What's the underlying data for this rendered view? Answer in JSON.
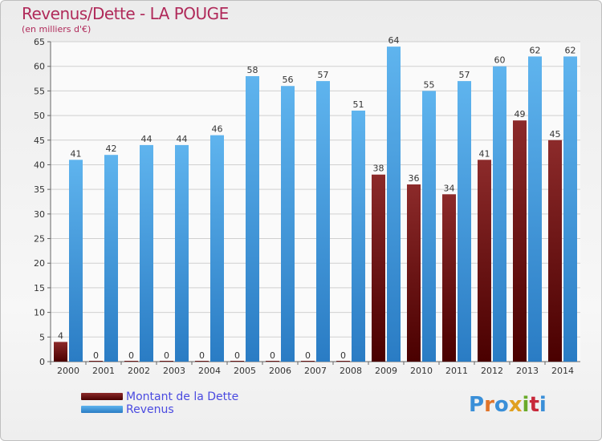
{
  "title": "Revenus/Dette - LA POUGE",
  "subtitle": "(en milliers d'€)",
  "brand": "Proxiti",
  "colors": {
    "debt": "#7a1212",
    "revenue": "#3a98e0",
    "grid": "#d0d0d0",
    "title": "#b02a5a",
    "legend_text": "#4a4ae0"
  },
  "chart_data": {
    "type": "bar",
    "title": "Revenus/Dette - LA POUGE",
    "subtitle": "(en milliers d'€)",
    "categories": [
      "2000",
      "2001",
      "2002",
      "2003",
      "2004",
      "2005",
      "2006",
      "2007",
      "2008",
      "2009",
      "2010",
      "2011",
      "2012",
      "2013",
      "2014"
    ],
    "series": [
      {
        "name": "Montant de la Dette",
        "values": [
          4,
          0,
          0,
          0,
          0,
          0,
          0,
          0,
          0,
          38,
          36,
          34,
          41,
          49,
          45
        ]
      },
      {
        "name": "Revenus",
        "values": [
          41,
          42,
          44,
          44,
          46,
          58,
          56,
          57,
          51,
          64,
          55,
          57,
          60,
          62,
          62
        ]
      }
    ],
    "ylim": [
      0,
      65
    ],
    "yticks": [
      0,
      5,
      10,
      15,
      20,
      25,
      30,
      35,
      40,
      45,
      50,
      55,
      60,
      65
    ],
    "grid": true,
    "legend": "bottom-left"
  }
}
